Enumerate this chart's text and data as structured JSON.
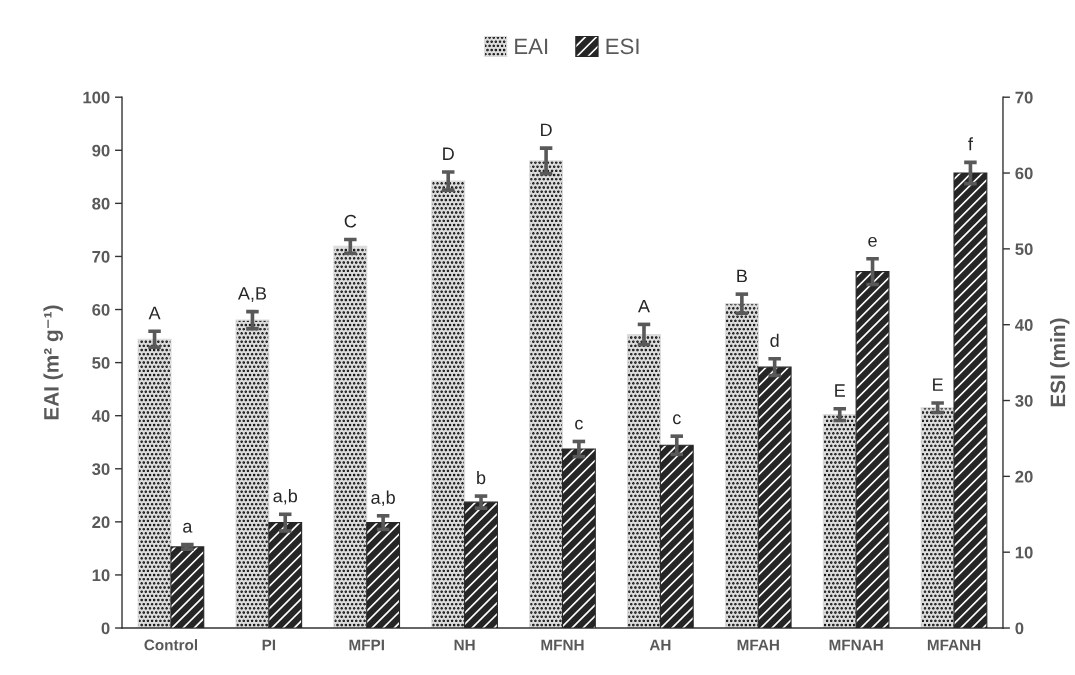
{
  "chart_data": {
    "type": "bar",
    "categories": [
      "Control",
      "PI",
      "MFPI",
      "NH",
      "MFNH",
      "AH",
      "MFAH",
      "MFNAH",
      "MFANH"
    ],
    "ylabel": "EAI (m² g⁻¹)",
    "y2label": "ESI (min)",
    "ylim": [
      0,
      100
    ],
    "yticks": [
      0,
      10,
      20,
      30,
      40,
      50,
      60,
      70,
      80,
      90,
      100
    ],
    "y2lim": [
      0,
      70
    ],
    "y2ticks": [
      0,
      10,
      20,
      30,
      40,
      50,
      60,
      70
    ],
    "series": [
      {
        "name": "EAI",
        "color": "#dcdcdc",
        "values": [
          54.4,
          58.0,
          71.9,
          84.2,
          88.0,
          55.3,
          61.1,
          40.2,
          41.5
        ],
        "errors": [
          1.5,
          1.6,
          1.3,
          1.7,
          2.4,
          1.9,
          1.8,
          1.1,
          0.9
        ],
        "value_labels": [
          "A",
          "A,B",
          "C",
          "D",
          "D",
          "A",
          "B",
          "E",
          "E"
        ]
      },
      {
        "name": "ESI",
        "axis": "y2",
        "color": "#262626",
        "values": [
          10.7,
          13.9,
          13.9,
          16.6,
          23.6,
          24.1,
          34.4,
          47.0,
          60.0
        ],
        "errors": [
          0.3,
          1.1,
          0.9,
          0.8,
          1.0,
          1.2,
          1.1,
          1.7,
          1.4
        ],
        "value_labels": [
          "a",
          "a,b",
          "a,b",
          "b",
          "c",
          "c",
          "d",
          "e",
          "f"
        ]
      }
    ],
    "legend": "top",
    "grid": false
  }
}
